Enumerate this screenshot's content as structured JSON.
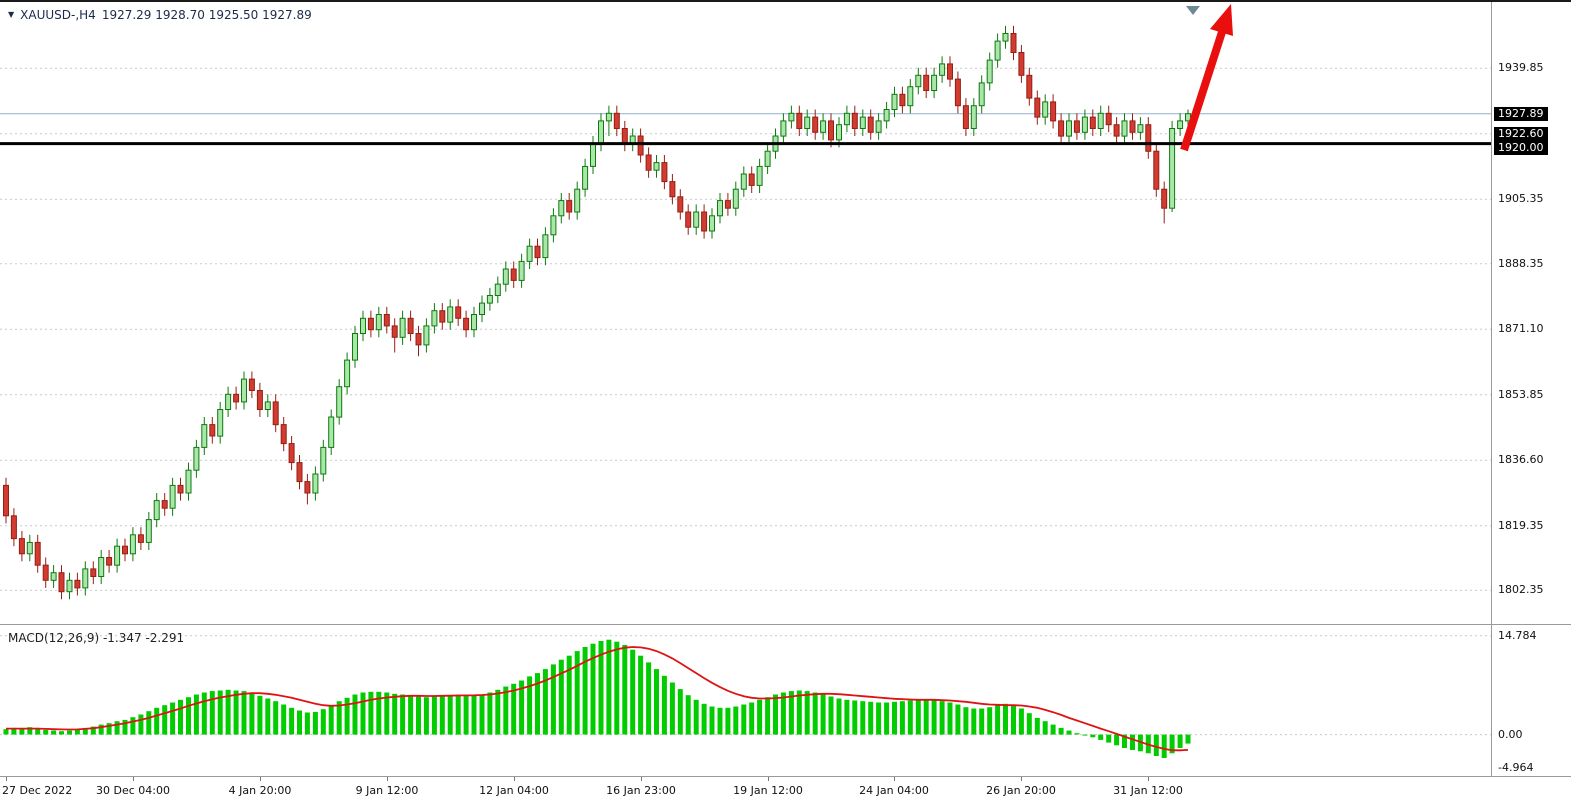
{
  "window": {
    "symbol_info": {
      "marker": "▼",
      "symbol": "XAUUSD-,H4",
      "ohlc": "1927.29 1928.70 1925.50 1927.89"
    },
    "macd_label": "MACD(12,26,9) -1.347 -2.291"
  },
  "colors": {
    "bull_fill": "#a9e6a9",
    "bull_stroke": "#0e7a0e",
    "bear_fill": "#d23b2f",
    "bear_stroke": "#941f14",
    "macd_bar": "#00cc00",
    "macd_signal": "#e01313",
    "grid": "#c9c9c9",
    "bid_line": "#8fb2c9",
    "hline": "#000000",
    "arrow": "#ea0f0f",
    "shift_marker": "#6e8896",
    "axis_text": "#111111",
    "tag_bg": "#000000",
    "tag_text": "#ffffff"
  },
  "price_axis": {
    "plain_labels": [
      {
        "text": "1939.85",
        "price": 1939.85
      },
      {
        "text": "1905.35",
        "price": 1905.35
      },
      {
        "text": "1888.35",
        "price": 1888.35
      },
      {
        "text": "1871.10",
        "price": 1871.1
      },
      {
        "text": "1853.85",
        "price": 1853.85
      },
      {
        "text": "1836.60",
        "price": 1836.6
      },
      {
        "text": "1819.35",
        "price": 1819.35
      },
      {
        "text": "1802.35",
        "price": 1802.35
      }
    ],
    "boxed_labels": [
      {
        "text": "1927.89",
        "price": 1927.89
      },
      {
        "text": "1922.60",
        "price": 1922.6
      },
      {
        "text": "1920.00",
        "price": 1920.0
      }
    ]
  },
  "macd_axis": {
    "labels": [
      {
        "text": "14.784",
        "value": 14.784
      },
      {
        "text": "0.00",
        "value": 0
      },
      {
        "text": "-4.964",
        "value": -4.964
      }
    ]
  },
  "time_axis": {
    "labels": [
      {
        "text": "27 Dec 2022",
        "index": 0
      },
      {
        "text": "30 Dec 04:00",
        "index": 16
      },
      {
        "text": "4 Jan 20:00",
        "index": 32
      },
      {
        "text": "9 Jan 12:00",
        "index": 48
      },
      {
        "text": "12 Jan 04:00",
        "index": 64
      },
      {
        "text": "16 Jan 23:00",
        "index": 80
      },
      {
        "text": "19 Jan 12:00",
        "index": 96
      },
      {
        "text": "24 Jan 04:00",
        "index": 112
      },
      {
        "text": "26 Jan 20:00",
        "index": 128
      },
      {
        "text": "31 Jan 12:00",
        "index": 144
      }
    ]
  },
  "chart_data": {
    "type": "candlestick_with_macd",
    "symbol": "XAUUSD-",
    "timeframe": "H4",
    "last_ohlc": {
      "open": 1927.29,
      "high": 1928.7,
      "low": 1925.5,
      "close": 1927.89
    },
    "main": {
      "ylim": [
        1793.5,
        1957.3
      ],
      "grid_prices": [
        1939.85,
        1922.6,
        1905.35,
        1888.35,
        1871.1,
        1853.85,
        1836.6,
        1819.35,
        1802.35
      ],
      "bid_line": 1927.89,
      "hline": 1920.0,
      "candles": [
        [
          1830,
          1832,
          1820,
          1822
        ],
        [
          1822,
          1824,
          1814,
          1816
        ],
        [
          1816,
          1818,
          1810,
          1812
        ],
        [
          1812,
          1817,
          1810,
          1815
        ],
        [
          1815,
          1817,
          1807,
          1809
        ],
        [
          1809,
          1811,
          1803,
          1805
        ],
        [
          1805,
          1809,
          1803,
          1807
        ],
        [
          1807,
          1809,
          1800,
          1802
        ],
        [
          1802,
          1807,
          1800,
          1805
        ],
        [
          1805,
          1807,
          1801,
          1803
        ],
        [
          1803,
          1810,
          1801,
          1808
        ],
        [
          1808,
          1810,
          1804,
          1806
        ],
        [
          1806,
          1813,
          1804,
          1811
        ],
        [
          1811,
          1813,
          1807,
          1809
        ],
        [
          1809,
          1816,
          1807,
          1814
        ],
        [
          1814,
          1816,
          1810,
          1812
        ],
        [
          1812,
          1819,
          1810,
          1817
        ],
        [
          1817,
          1819,
          1813,
          1815
        ],
        [
          1815,
          1823,
          1813,
          1821
        ],
        [
          1821,
          1828,
          1819,
          1826
        ],
        [
          1826,
          1828,
          1822,
          1824
        ],
        [
          1824,
          1832,
          1822,
          1830
        ],
        [
          1830,
          1832,
          1826,
          1828
        ],
        [
          1828,
          1836,
          1826,
          1834
        ],
        [
          1834,
          1842,
          1832,
          1840
        ],
        [
          1840,
          1848,
          1838,
          1846
        ],
        [
          1846,
          1848,
          1841,
          1843
        ],
        [
          1843,
          1852,
          1841,
          1850
        ],
        [
          1850,
          1856,
          1848,
          1854
        ],
        [
          1854,
          1856,
          1850,
          1852
        ],
        [
          1852,
          1860,
          1850,
          1858
        ],
        [
          1858,
          1860,
          1853,
          1855
        ],
        [
          1855,
          1857,
          1848,
          1850
        ],
        [
          1850,
          1854,
          1848,
          1852
        ],
        [
          1852,
          1854,
          1844,
          1846
        ],
        [
          1846,
          1848,
          1839,
          1841
        ],
        [
          1841,
          1843,
          1834,
          1836
        ],
        [
          1836,
          1838,
          1829,
          1831
        ],
        [
          1831,
          1833,
          1825,
          1828
        ],
        [
          1828,
          1835,
          1826,
          1833
        ],
        [
          1833,
          1842,
          1831,
          1840
        ],
        [
          1840,
          1850,
          1838,
          1848
        ],
        [
          1848,
          1858,
          1846,
          1856
        ],
        [
          1856,
          1865,
          1854,
          1863
        ],
        [
          1863,
          1872,
          1861,
          1870
        ],
        [
          1870,
          1876,
          1868,
          1874
        ],
        [
          1874,
          1876,
          1869,
          1871
        ],
        [
          1871,
          1877,
          1869,
          1875
        ],
        [
          1875,
          1877,
          1870,
          1872
        ],
        [
          1872,
          1874,
          1865,
          1869
        ],
        [
          1869,
          1876,
          1867,
          1874
        ],
        [
          1874,
          1876,
          1868,
          1870
        ],
        [
          1870,
          1872,
          1864,
          1867
        ],
        [
          1867,
          1874,
          1865,
          1872
        ],
        [
          1872,
          1878,
          1870,
          1876
        ],
        [
          1876,
          1878,
          1871,
          1873
        ],
        [
          1873,
          1879,
          1871,
          1877
        ],
        [
          1877,
          1879,
          1872,
          1874
        ],
        [
          1874,
          1876,
          1869,
          1871
        ],
        [
          1871,
          1877,
          1869,
          1875
        ],
        [
          1875,
          1880,
          1873,
          1878
        ],
        [
          1878,
          1882,
          1876,
          1880
        ],
        [
          1880,
          1885,
          1878,
          1883
        ],
        [
          1883,
          1889,
          1881,
          1887
        ],
        [
          1887,
          1889,
          1882,
          1884
        ],
        [
          1884,
          1891,
          1882,
          1889
        ],
        [
          1889,
          1895,
          1887,
          1893
        ],
        [
          1893,
          1895,
          1888,
          1890
        ],
        [
          1890,
          1898,
          1888,
          1896
        ],
        [
          1896,
          1903,
          1894,
          1901
        ],
        [
          1901,
          1907,
          1899,
          1905
        ],
        [
          1905,
          1907,
          1900,
          1902
        ],
        [
          1902,
          1910,
          1900,
          1908
        ],
        [
          1908,
          1916,
          1906,
          1914
        ],
        [
          1914,
          1922,
          1912,
          1920
        ],
        [
          1920,
          1928,
          1918,
          1926
        ],
        [
          1926,
          1930,
          1922,
          1928
        ],
        [
          1928,
          1930,
          1922,
          1924
        ],
        [
          1924,
          1926,
          1918,
          1920
        ],
        [
          1920,
          1924,
          1918,
          1922
        ],
        [
          1922,
          1924,
          1915,
          1917
        ],
        [
          1917,
          1919,
          1911,
          1913
        ],
        [
          1913,
          1917,
          1911,
          1915
        ],
        [
          1915,
          1917,
          1908,
          1910
        ],
        [
          1910,
          1912,
          1904,
          1906
        ],
        [
          1906,
          1908,
          1900,
          1902
        ],
        [
          1902,
          1904,
          1896,
          1898
        ],
        [
          1898,
          1904,
          1896,
          1902
        ],
        [
          1902,
          1904,
          1895,
          1897
        ],
        [
          1897,
          1903,
          1895,
          1901
        ],
        [
          1901,
          1907,
          1899,
          1905
        ],
        [
          1905,
          1907,
          1901,
          1903
        ],
        [
          1903,
          1910,
          1901,
          1908
        ],
        [
          1908,
          1914,
          1906,
          1912
        ],
        [
          1912,
          1914,
          1907,
          1909
        ],
        [
          1909,
          1916,
          1907,
          1914
        ],
        [
          1914,
          1920,
          1912,
          1918
        ],
        [
          1918,
          1924,
          1916,
          1922
        ],
        [
          1922,
          1928,
          1920,
          1926
        ],
        [
          1926,
          1930,
          1924,
          1928
        ],
        [
          1928,
          1930,
          1922,
          1924
        ],
        [
          1924,
          1929,
          1922,
          1927
        ],
        [
          1927,
          1929,
          1921,
          1923
        ],
        [
          1923,
          1928,
          1921,
          1926
        ],
        [
          1926,
          1928,
          1919,
          1921
        ],
        [
          1921,
          1927,
          1919,
          1925
        ],
        [
          1925,
          1930,
          1923,
          1928
        ],
        [
          1928,
          1930,
          1922,
          1924
        ],
        [
          1924,
          1929,
          1922,
          1927
        ],
        [
          1927,
          1929,
          1921,
          1923
        ],
        [
          1923,
          1928,
          1921,
          1926
        ],
        [
          1926,
          1931,
          1924,
          1929
        ],
        [
          1929,
          1935,
          1927,
          1933
        ],
        [
          1933,
          1935,
          1928,
          1930
        ],
        [
          1930,
          1937,
          1928,
          1935
        ],
        [
          1935,
          1940,
          1933,
          1938
        ],
        [
          1938,
          1940,
          1932,
          1934
        ],
        [
          1934,
          1940,
          1932,
          1938
        ],
        [
          1938,
          1943,
          1936,
          1941
        ],
        [
          1941,
          1943,
          1935,
          1937
        ],
        [
          1937,
          1939,
          1928,
          1930
        ],
        [
          1930,
          1932,
          1922,
          1924
        ],
        [
          1924,
          1932,
          1922,
          1930
        ],
        [
          1930,
          1938,
          1928,
          1936
        ],
        [
          1936,
          1944,
          1934,
          1942
        ],
        [
          1942,
          1949,
          1940,
          1947
        ],
        [
          1947,
          1951,
          1945,
          1949
        ],
        [
          1949,
          1951,
          1942,
          1944
        ],
        [
          1944,
          1946,
          1936,
          1938
        ],
        [
          1938,
          1940,
          1930,
          1932
        ],
        [
          1932,
          1934,
          1925,
          1927
        ],
        [
          1927,
          1933,
          1925,
          1931
        ],
        [
          1931,
          1933,
          1924,
          1926
        ],
        [
          1926,
          1928,
          1920,
          1922
        ],
        [
          1922,
          1928,
          1920,
          1926
        ],
        [
          1926,
          1928,
          1921,
          1923
        ],
        [
          1923,
          1929,
          1921,
          1927
        ],
        [
          1927,
          1929,
          1922,
          1924
        ],
        [
          1924,
          1930,
          1922,
          1928
        ],
        [
          1928,
          1930,
          1923,
          1925
        ],
        [
          1925,
          1927,
          1920,
          1922
        ],
        [
          1922,
          1928,
          1920,
          1926
        ],
        [
          1926,
          1928,
          1921,
          1923
        ],
        [
          1923,
          1927,
          1921,
          1925
        ],
        [
          1925,
          1927,
          1916,
          1918
        ],
        [
          1918,
          1920,
          1906,
          1908
        ],
        [
          1908,
          1910,
          1899,
          1903
        ],
        [
          1903,
          1926,
          1902,
          1924
        ],
        [
          1924,
          1928,
          1922,
          1926
        ],
        [
          1926,
          1929,
          1924,
          1927.89
        ]
      ]
    },
    "macd": {
      "label": "MACD(12,26,9)",
      "values": [
        -1.347,
        -2.291
      ],
      "ylim": [
        -6.2,
        16.4
      ],
      "grid_values": [
        14.784,
        0
      ],
      "scale_labels": [
        "14.784",
        "0.00",
        "-4.964"
      ],
      "histogram": [
        0.8,
        1.0,
        0.9,
        1.1,
        1.0,
        0.7,
        0.6,
        0.5,
        0.6,
        0.8,
        1.0,
        1.2,
        1.5,
        1.7,
        2.0,
        2.2,
        2.6,
        3.0,
        3.5,
        4.0,
        4.4,
        4.8,
        5.2,
        5.6,
        6.0,
        6.3,
        6.5,
        6.6,
        6.7,
        6.6,
        6.5,
        6.2,
        5.8,
        5.4,
        5.0,
        4.5,
        4.0,
        3.6,
        3.3,
        3.4,
        3.8,
        4.4,
        5.0,
        5.5,
        6.0,
        6.3,
        6.4,
        6.4,
        6.3,
        6.1,
        6.0,
        5.9,
        5.7,
        5.6,
        5.7,
        5.8,
        5.9,
        6.0,
        5.9,
        5.8,
        6.0,
        6.3,
        6.7,
        7.2,
        7.6,
        8.1,
        8.7,
        9.2,
        9.8,
        10.5,
        11.2,
        11.8,
        12.5,
        13.1,
        13.6,
        14.0,
        14.2,
        13.9,
        13.4,
        12.7,
        11.8,
        10.8,
        9.8,
        8.8,
        7.8,
        6.8,
        5.9,
        5.2,
        4.6,
        4.2,
        4.0,
        4.0,
        4.2,
        4.5,
        4.8,
        5.2,
        5.6,
        6.0,
        6.3,
        6.5,
        6.6,
        6.5,
        6.3,
        6.0,
        5.7,
        5.4,
        5.2,
        5.1,
        5.0,
        4.9,
        4.8,
        4.8,
        4.9,
        5.0,
        5.1,
        5.2,
        5.2,
        5.1,
        5.0,
        4.8,
        4.5,
        4.1,
        3.9,
        3.9,
        4.1,
        4.4,
        4.6,
        4.4,
        3.9,
        3.2,
        2.5,
        2.0,
        1.5,
        1.0,
        0.6,
        0.2,
        -0.1,
        -0.4,
        -0.8,
        -1.2,
        -1.6,
        -2.0,
        -2.3,
        -2.5,
        -2.8,
        -3.2,
        -3.5,
        -2.8,
        -2.0,
        -1.347
      ],
      "signal": [
        0.9,
        0.9,
        0.9,
        0.9,
        0.9,
        0.85,
        0.8,
        0.78,
        0.76,
        0.78,
        0.85,
        0.95,
        1.1,
        1.3,
        1.5,
        1.7,
        1.95,
        2.2,
        2.5,
        2.85,
        3.2,
        3.55,
        3.9,
        4.3,
        4.65,
        5.0,
        5.3,
        5.55,
        5.75,
        5.95,
        6.1,
        6.2,
        6.2,
        6.1,
        5.95,
        5.75,
        5.5,
        5.2,
        4.9,
        4.6,
        4.4,
        4.3,
        4.35,
        4.5,
        4.7,
        4.95,
        5.2,
        5.4,
        5.55,
        5.65,
        5.75,
        5.8,
        5.8,
        5.78,
        5.78,
        5.8,
        5.82,
        5.85,
        5.87,
        5.88,
        5.92,
        6.0,
        6.15,
        6.35,
        6.6,
        6.9,
        7.25,
        7.65,
        8.1,
        8.6,
        9.15,
        9.7,
        10.3,
        10.9,
        11.45,
        11.95,
        12.4,
        12.75,
        13.0,
        13.1,
        13.05,
        12.85,
        12.5,
        12.0,
        11.4,
        10.7,
        9.95,
        9.2,
        8.45,
        7.75,
        7.1,
        6.55,
        6.1,
        5.75,
        5.5,
        5.4,
        5.4,
        5.45,
        5.55,
        5.7,
        5.85,
        5.95,
        6.05,
        6.1,
        6.1,
        6.05,
        5.95,
        5.85,
        5.75,
        5.65,
        5.55,
        5.45,
        5.35,
        5.3,
        5.25,
        5.2,
        5.2,
        5.2,
        5.15,
        5.1,
        5.0,
        4.9,
        4.75,
        4.6,
        4.5,
        4.45,
        4.4,
        4.4,
        4.35,
        4.2,
        4.0,
        3.7,
        3.35,
        2.95,
        2.5,
        2.1,
        1.7,
        1.3,
        0.9,
        0.5,
        0.1,
        -0.3,
        -0.7,
        -1.1,
        -1.5,
        -1.85,
        -2.15,
        -2.35,
        -2.35,
        -2.291
      ]
    }
  }
}
